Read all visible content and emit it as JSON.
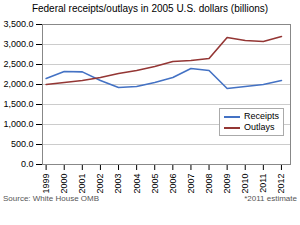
{
  "chart_data": {
    "type": "line",
    "title": "Federal receipts/outlays in 2005 U.S. dollars (billions)",
    "x": [
      1999,
      2000,
      2001,
      2002,
      2003,
      2004,
      2005,
      2006,
      2007,
      2008,
      2009,
      2010,
      2011,
      2012
    ],
    "series": [
      {
        "name": "Receipts",
        "color": "#4472c4",
        "values": [
          2150,
          2325,
          2315,
          2100,
          1925,
          1950,
          2050,
          2175,
          2400,
          2350,
          1900,
          1950,
          2000,
          2100
        ]
      },
      {
        "name": "Outlays",
        "color": "#943634",
        "values": [
          2000,
          2050,
          2100,
          2175,
          2275,
          2350,
          2450,
          2575,
          2600,
          2650,
          3175,
          3100,
          3075,
          3200
        ]
      }
    ],
    "xlim": [
      1998.8,
      2012.5
    ],
    "xticks": [
      1999,
      2000,
      2001,
      2002,
      2003,
      2004,
      2005,
      2006,
      2007,
      2008,
      2009,
      2010,
      2011,
      2012
    ],
    "ylim": [
      0,
      3500
    ],
    "yticks": [
      {
        "value": 0,
        "label": "0.0"
      },
      {
        "value": 500,
        "label": "500.0"
      },
      {
        "value": 1000,
        "label": "1,000.0"
      },
      {
        "value": 1500,
        "label": "1,500.0"
      },
      {
        "value": 2000,
        "label": "2,000.0"
      },
      {
        "value": 2500,
        "label": "2,500.0"
      },
      {
        "value": 3000,
        "label": "3,000.0"
      },
      {
        "value": 3500,
        "label": "3,500.0"
      }
    ],
    "grid": true,
    "legend": "lower right",
    "annotations": [
      "Source: White House OMB",
      "*2011 estimate"
    ]
  }
}
